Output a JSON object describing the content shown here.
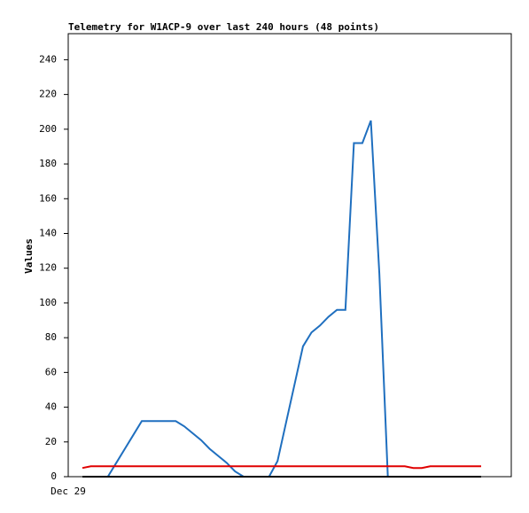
{
  "chart_data": {
    "type": "line",
    "title": "Telemetry for W1ACP-9 over last 240 hours (48 points)",
    "y_label": "Values",
    "categories": [
      "Dec 29",
      null,
      null,
      null,
      null,
      null,
      null,
      null,
      null,
      null,
      null,
      null,
      null,
      null,
      null,
      null,
      null,
      null,
      null,
      null,
      null,
      null,
      null,
      null,
      null,
      null,
      null,
      null,
      null,
      null,
      null,
      null,
      null,
      null,
      null,
      null,
      null,
      null,
      null,
      null,
      null,
      null,
      null,
      null,
      null,
      null,
      null,
      null
    ],
    "ylim": [
      0,
      255
    ],
    "yticks": [
      0,
      20,
      40,
      60,
      80,
      100,
      120,
      140,
      160,
      180,
      200,
      220,
      240
    ],
    "grid": false,
    "series": [
      {
        "color": "#1f6fbf",
        "values": [
          0,
          0,
          0,
          0,
          8,
          16,
          24,
          32,
          32,
          32,
          32,
          32,
          29,
          25,
          21,
          16,
          12,
          8,
          3,
          0,
          0,
          0,
          0,
          9,
          31,
          53,
          75,
          83,
          87,
          92,
          96,
          96,
          192,
          192,
          205,
          117,
          0,
          0,
          0,
          0,
          0,
          0,
          0,
          0,
          0,
          0,
          0,
          0
        ]
      },
      {
        "color": "#e00000",
        "values": [
          5,
          6,
          6,
          6,
          6,
          6,
          6,
          6,
          6,
          6,
          6,
          6,
          6,
          6,
          6,
          6,
          6,
          6,
          6,
          6,
          6,
          6,
          6,
          6,
          6,
          6,
          6,
          6,
          6,
          6,
          6,
          6,
          6,
          6,
          6,
          6,
          6,
          6,
          6,
          5,
          5,
          6,
          6,
          6,
          6,
          6,
          6,
          6
        ]
      },
      {
        "color": "#000000",
        "values": [
          0,
          0,
          0,
          0,
          0,
          0,
          0,
          0,
          0,
          0,
          0,
          0,
          0,
          0,
          0,
          0,
          0,
          0,
          0,
          0,
          0,
          0,
          0,
          0,
          0,
          0,
          0,
          0,
          0,
          0,
          0,
          0,
          0,
          0,
          0,
          0,
          0,
          0,
          0,
          0,
          0,
          0,
          0,
          0,
          0,
          0,
          0,
          0
        ]
      }
    ]
  }
}
